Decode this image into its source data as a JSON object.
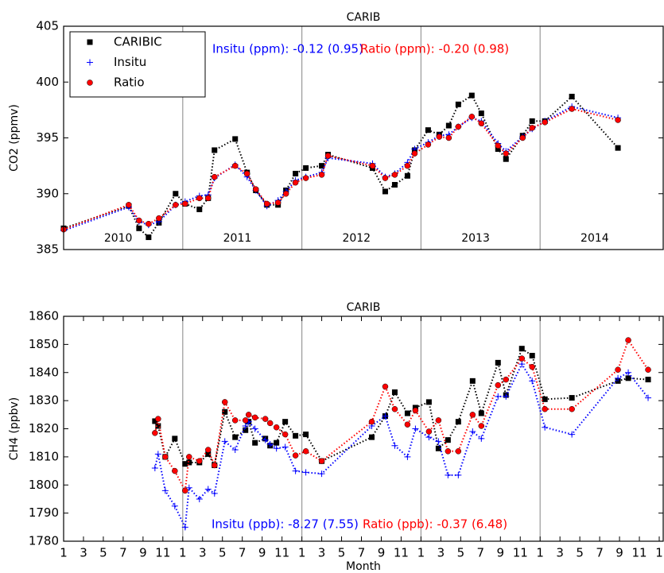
{
  "chart_data": [
    {
      "type": "line",
      "title": "CARIB",
      "y_label": "CO2 (ppmv)",
      "x": [
        0,
        6.56,
        7.6,
        8.56,
        9.6,
        11.28,
        12.24,
        13.68,
        14.56,
        15.2,
        17.28,
        18.48,
        19.36,
        20.48,
        21.6,
        22.4,
        23.36,
        24.4,
        26.0,
        26.64,
        31.12,
        32.4,
        33.36,
        34.64,
        35.36,
        36.72,
        37.84,
        38.8,
        39.76,
        41.12,
        42.08,
        43.76,
        44.56,
        46.24,
        47.2,
        48.48,
        51.2,
        55.84
      ],
      "series": [
        {
          "name": "CARIBIC",
          "color": "#000000",
          "marker": "square",
          "values": [
            386.9,
            388.9,
            386.9,
            386.1,
            387.4,
            390.0,
            389.1,
            388.6,
            389.6,
            393.9,
            394.9,
            391.9,
            390.3,
            389.0,
            389.0,
            390.3,
            391.8,
            392.3,
            392.5,
            393.5,
            392.3,
            390.2,
            390.8,
            391.6,
            393.9,
            395.7,
            395.3,
            396.1,
            398.0,
            398.8,
            397.2,
            394.0,
            393.1,
            395.2,
            396.5,
            396.5,
            398.7,
            394.1
          ]
        },
        {
          "name": "Insitu",
          "color": "#0000ff",
          "marker": "plus",
          "values": [
            386.7,
            388.8,
            387.5,
            387.2,
            387.5,
            389.0,
            389.3,
            389.8,
            389.9,
            391.4,
            392.6,
            391.5,
            390.3,
            388.9,
            389.4,
            390.2,
            391.2,
            391.5,
            391.9,
            393.2,
            392.7,
            391.5,
            391.8,
            392.8,
            394.0,
            394.6,
            395.2,
            395.3,
            396.0,
            396.8,
            396.5,
            394.5,
            393.8,
            395.1,
            395.8,
            396.5,
            397.8,
            396.8
          ]
        },
        {
          "name": "Ratio",
          "color": "#ff0000",
          "marker": "circle",
          "values": [
            386.8,
            389.0,
            387.6,
            387.3,
            387.8,
            389.0,
            389.1,
            389.6,
            389.6,
            391.5,
            392.5,
            391.8,
            390.4,
            389.1,
            389.2,
            390.0,
            391.0,
            391.4,
            391.7,
            393.4,
            392.5,
            391.4,
            391.7,
            392.5,
            393.6,
            394.4,
            395.1,
            395.0,
            396.0,
            396.9,
            396.3,
            394.3,
            393.6,
            395.0,
            395.9,
            396.4,
            397.6,
            396.6
          ]
        }
      ],
      "xlim": [
        0,
        60.4
      ],
      "ylim": [
        385,
        405
      ],
      "yticks": [
        385,
        390,
        395,
        400,
        405
      ],
      "vlines": [
        12,
        24,
        36,
        48
      ],
      "year_labels": [
        "2010",
        "2011",
        "2012",
        "2013",
        "2014"
      ],
      "legend": "upper left",
      "annotations": [
        {
          "text": "Insitu (ppm): -0.12 (0.95)",
          "color": "#0000ff"
        },
        {
          "text": "Ratio (ppm): -0.20 (0.98)",
          "color": "#ff0000"
        }
      ]
    },
    {
      "type": "line",
      "title": "CARIB",
      "y_label": "CH4 (ppbv)",
      "x_label": "Month",
      "x": [
        9.2,
        9.52,
        10.24,
        11.2,
        12.24,
        12.64,
        13.68,
        14.56,
        15.2,
        16.24,
        17.28,
        18.32,
        18.64,
        19.28,
        20.32,
        20.8,
        21.44,
        22.32,
        23.36,
        24.4,
        26.0,
        31.04,
        32.4,
        33.36,
        34.64,
        35.44,
        36.8,
        37.76,
        38.72,
        39.76,
        41.2,
        42.08,
        43.76,
        44.56,
        46.16,
        47.2,
        48.48,
        51.2,
        55.84,
        56.88,
        58.88
      ],
      "series": [
        {
          "name": "CARIBIC",
          "color": "#000000",
          "marker": "square",
          "values": [
            1822.7,
            1821,
            1810,
            1816.5,
            1807.5,
            1808,
            1808,
            1811,
            1807,
            1826,
            1817,
            1819.5,
            1822.5,
            1815,
            1816.5,
            1814,
            1815,
            1822.5,
            1817.5,
            1818,
            1808.5,
            1817,
            1824.5,
            1833,
            1825.5,
            1827.5,
            1829.5,
            1813,
            1816,
            1822.5,
            1837,
            1825.5,
            1843.5,
            1832,
            1848.5,
            1846,
            1830.5,
            1831,
            1837,
            1838,
            1837.5
          ]
        },
        {
          "name": "Insitu",
          "color": "#0000ff",
          "marker": "plus",
          "values": [
            1806,
            1811,
            1798,
            1792.5,
            1785,
            1799,
            1795,
            1798.5,
            1797,
            1815.5,
            1812.5,
            1821,
            1822.5,
            1820,
            1816,
            1814.5,
            1813,
            1813.5,
            1805,
            1804.5,
            1804,
            1821,
            1824.5,
            1814,
            1810,
            1820,
            1817,
            1815.5,
            1803.5,
            1803.5,
            1819,
            1816.5,
            1831.5,
            1831.5,
            1843,
            1837,
            1820.5,
            1818,
            1838,
            1840,
            1831
          ]
        },
        {
          "name": "Ratio",
          "color": "#ff0000",
          "marker": "circle",
          "values": [
            1818.5,
            1823.5,
            1810,
            1805,
            1798,
            1810,
            1808.5,
            1812.5,
            1807,
            1829.5,
            1823,
            1823,
            1825,
            1824,
            1823.5,
            1822,
            1820.5,
            1818,
            1810.5,
            1812,
            1808.5,
            1822.5,
            1835,
            1827,
            1821.5,
            1826.5,
            1819,
            1823,
            1812,
            1812,
            1825,
            1821,
            1835.5,
            1837.5,
            1845,
            1842,
            1827,
            1827,
            1841,
            1851.5,
            1841
          ]
        }
      ],
      "xlim": [
        0,
        60.4
      ],
      "ylim": [
        1780,
        1860
      ],
      "yticks": [
        1780,
        1790,
        1800,
        1810,
        1820,
        1830,
        1840,
        1850,
        1860
      ],
      "xticks": [
        {
          "value": 0,
          "label": "1"
        },
        {
          "value": 2,
          "label": "3"
        },
        {
          "value": 4,
          "label": "5"
        },
        {
          "value": 6,
          "label": "7"
        },
        {
          "value": 8,
          "label": "9"
        },
        {
          "value": 10,
          "label": "11"
        },
        {
          "value": 12,
          "label": "1"
        },
        {
          "value": 14,
          "label": "3"
        },
        {
          "value": 16,
          "label": "5"
        },
        {
          "value": 18,
          "label": "7"
        },
        {
          "value": 20,
          "label": "9"
        },
        {
          "value": 22,
          "label": "11"
        },
        {
          "value": 24,
          "label": "1"
        },
        {
          "value": 26,
          "label": "3"
        },
        {
          "value": 28,
          "label": "5"
        },
        {
          "value": 30,
          "label": "7"
        },
        {
          "value": 32,
          "label": "9"
        },
        {
          "value": 34,
          "label": "11"
        },
        {
          "value": 36,
          "label": "1"
        },
        {
          "value": 38,
          "label": "3"
        },
        {
          "value": 40,
          "label": "5"
        },
        {
          "value": 42,
          "label": "7"
        },
        {
          "value": 44,
          "label": "9"
        },
        {
          "value": 46,
          "label": "11"
        },
        {
          "value": 48,
          "label": "1"
        },
        {
          "value": 50,
          "label": "3"
        },
        {
          "value": 52,
          "label": "5"
        },
        {
          "value": 54,
          "label": "7"
        },
        {
          "value": 56,
          "label": "9"
        },
        {
          "value": 58,
          "label": "11"
        },
        {
          "value": 60,
          "label": "1"
        }
      ],
      "vlines": [
        12,
        24,
        36,
        48
      ],
      "annotations": [
        {
          "text": "Insitu (ppb): -8.27 (7.55)",
          "color": "#0000ff"
        },
        {
          "text": "Ratio (ppb): -0.37 (6.48)",
          "color": "#ff0000"
        }
      ]
    }
  ]
}
